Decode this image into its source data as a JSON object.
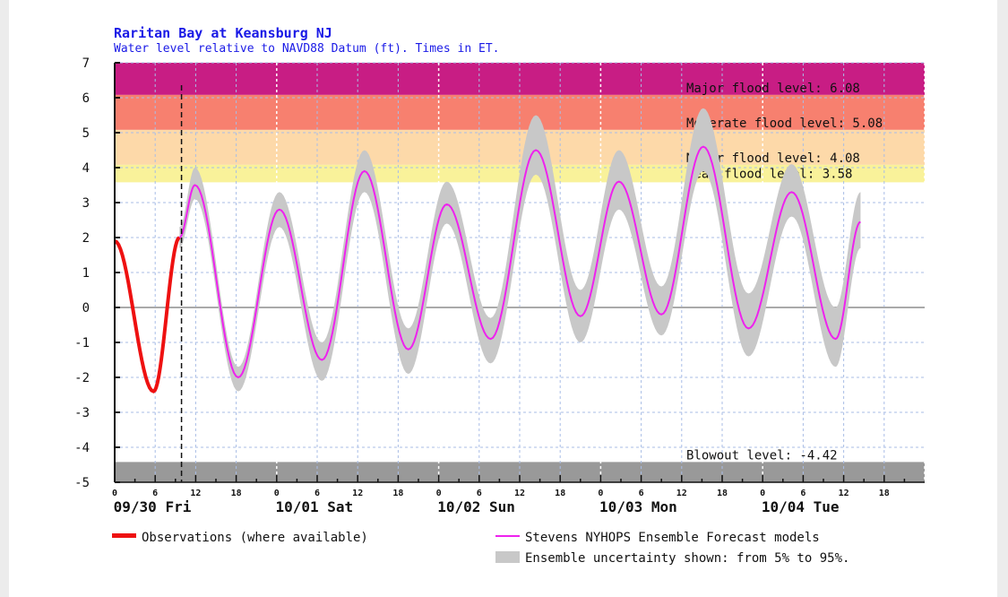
{
  "chart_data": {
    "type": "line",
    "title": "Raritan Bay at Keansburg NJ",
    "subtitle": "Water level relative to NAVD88 Datum (ft). Times in ET.",
    "ylim": [
      -5,
      7
    ],
    "y_ticks": [
      "7",
      "6",
      "5",
      "4",
      "3",
      "2",
      "1",
      "0",
      "-1",
      "-2",
      "-3",
      "-4",
      "-5"
    ],
    "x_range": [
      "09/30 00:00",
      "10/05 00:00"
    ],
    "x_hour_ticks": [
      "0",
      "6",
      "12",
      "18"
    ],
    "day_labels": [
      "09/30 Fri",
      "10/01 Sat",
      "10/02 Sun",
      "10/03 Mon",
      "10/04 Tue"
    ],
    "grid": true,
    "now_marker": "09/30 09:54",
    "thresholds": [
      {
        "label": "Major flood level: 6.08",
        "from": 6.08,
        "to": 7,
        "color": "#c81d84"
      },
      {
        "label": "Moderate flood level: 5.08",
        "from": 5.08,
        "to": 6.08,
        "color": "#f7806f"
      },
      {
        "label": "Minor flood level: 4.08",
        "from": 4.08,
        "to": 5.08,
        "color": "#fdd9a9"
      },
      {
        "label": "Near flood level: 3.58",
        "from": 3.58,
        "to": 4.08,
        "color": "#f9f29a"
      },
      {
        "label": "Blowout level: -4.42",
        "from": -5,
        "to": -4.42,
        "color": "#999999"
      }
    ],
    "series": [
      {
        "name": "Observations (where available)",
        "color": "#ee1111",
        "points": [
          [
            "09/30 00:00",
            1.9
          ],
          [
            "09/30 05:45",
            -2.4
          ],
          [
            "09/30 09:36",
            2.0
          ]
        ]
      },
      {
        "name": "Stevens NYHOPS Ensemble Forecast models",
        "color": "#ee22ee",
        "points": [
          [
            "09/30 09:36",
            2.0
          ],
          [
            "09/30 11:54",
            3.5
          ],
          [
            "09/30 18:18",
            -2.0
          ],
          [
            "10/01 00:24",
            2.8
          ],
          [
            "10/01 06:42",
            -1.5
          ],
          [
            "10/01 13:00",
            3.9
          ],
          [
            "10/01 19:30",
            -1.2
          ],
          [
            "10/02 01:12",
            2.95
          ],
          [
            "10/02 07:42",
            -0.9
          ],
          [
            "10/02 14:24",
            4.5
          ],
          [
            "10/02 21:00",
            -0.25
          ],
          [
            "10/03 02:42",
            3.6
          ],
          [
            "10/03 09:00",
            -0.2
          ],
          [
            "10/03 15:12",
            4.6
          ],
          [
            "10/03 21:54",
            -0.6
          ],
          [
            "10/04 04:18",
            3.3
          ],
          [
            "10/04 10:48",
            -0.9
          ],
          [
            "10/04 14:30",
            2.45
          ]
        ],
        "band_5_95": [
          [
            1.7,
            2.3
          ],
          [
            3.1,
            4.0
          ],
          [
            -2.4,
            -1.7
          ],
          [
            2.3,
            3.3
          ],
          [
            -2.1,
            -1.0
          ],
          [
            3.3,
            4.5
          ],
          [
            -1.9,
            -0.6
          ],
          [
            2.4,
            3.6
          ],
          [
            -1.6,
            -0.3
          ],
          [
            3.8,
            5.5
          ],
          [
            -1.0,
            0.5
          ],
          [
            2.8,
            4.5
          ],
          [
            -0.8,
            0.6
          ],
          [
            3.9,
            5.7
          ],
          [
            -1.4,
            0.4
          ],
          [
            2.6,
            4.1
          ],
          [
            -1.7,
            0.0
          ],
          [
            1.7,
            3.3
          ]
        ]
      }
    ],
    "legend": {
      "observations": "Observations (where available)",
      "forecast": "Stevens NYHOPS Ensemble Forecast models",
      "uncertainty": "Ensemble uncertainty shown: from 5% to 95%.",
      "band_color": "#c8c8c8"
    }
  }
}
